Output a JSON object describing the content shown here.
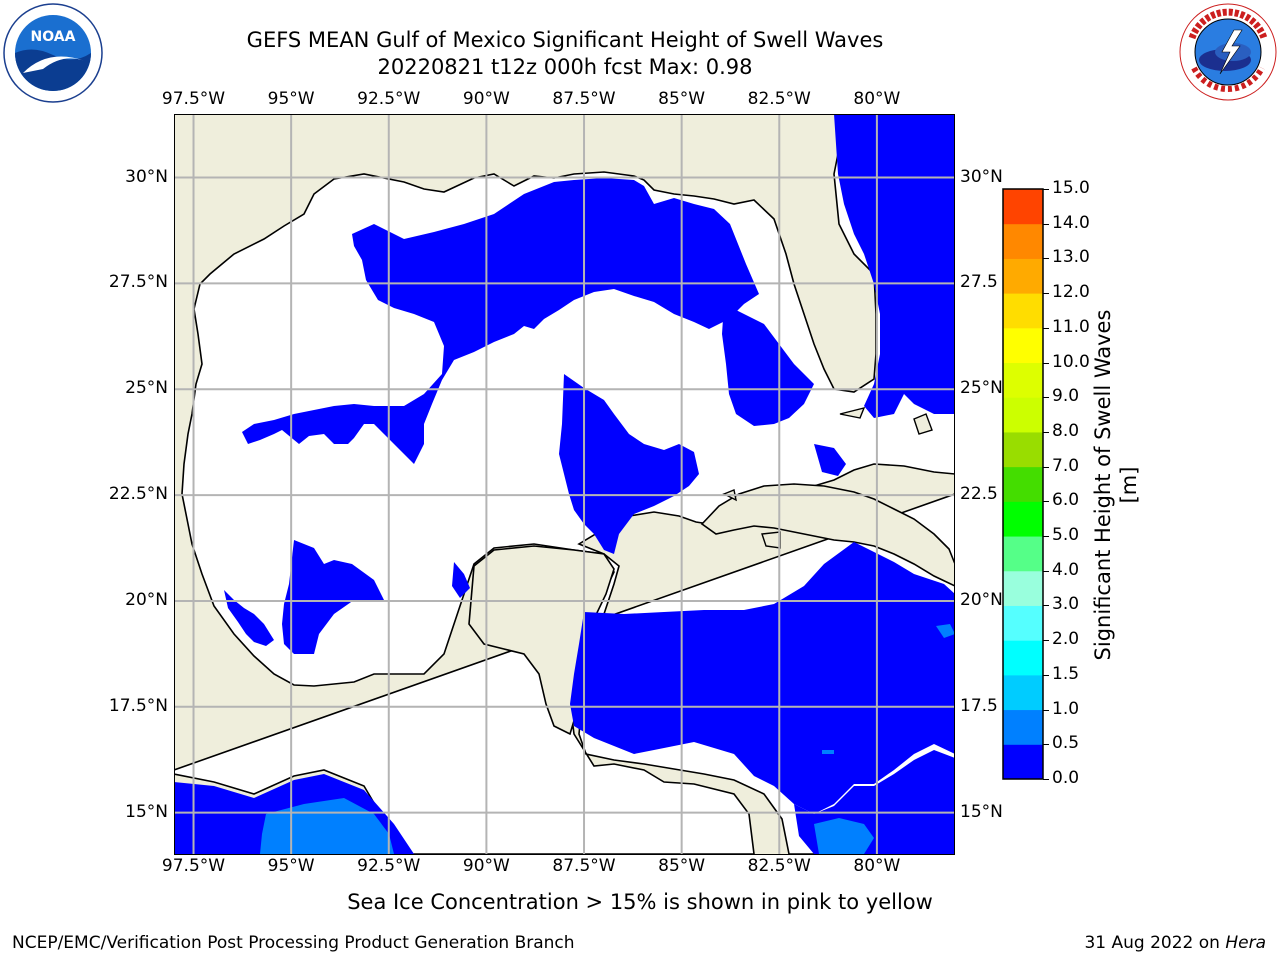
{
  "title": {
    "line1": "GEFS MEAN Gulf of Mexico Significant Height of Swell Waves",
    "line2": "20220821 t12z 000h fcst   Max: 0.98"
  },
  "map": {
    "lon_ticks": [
      "97.5°W",
      "95°W",
      "92.5°W",
      "90°W",
      "87.5°W",
      "85°W",
      "82.5°W",
      "80°W"
    ],
    "lat_ticks_left": [
      "30°N",
      "27.5°N",
      "25°N",
      "22.5°N",
      "20°N",
      "17.5°N",
      "15°N"
    ],
    "lat_ticks_right": [
      "30°N",
      "27.5",
      "25°N",
      "22.5",
      "20°N",
      "17.5",
      "15°N"
    ],
    "lon_range": [
      -98,
      -78
    ],
    "lat_range": [
      14,
      31.5
    ],
    "land_color": "#efeedc",
    "ocean_color": "#ffffff",
    "grid_color": "#b4b4b4"
  },
  "colorbar": {
    "label": "Significant Height of Swell Waves [m]",
    "ticks": [
      "15.0",
      "14.0",
      "13.0",
      "12.0",
      "11.0",
      "10.0",
      "9.0",
      "8.0",
      "7.0",
      "6.0",
      "5.0",
      "4.0",
      "3.0",
      "2.0",
      "1.5",
      "1.0",
      "0.5",
      "0.0"
    ],
    "levels": [
      0,
      0.5,
      1,
      1.5,
      2,
      3,
      4,
      5,
      6,
      7,
      8,
      9,
      10,
      11,
      12,
      13,
      14,
      15
    ],
    "colors": [
      "#0000ff",
      "#0080ff",
      "#00ccff",
      "#00ffff",
      "#55ffff",
      "#99ffdd",
      "#55ff88",
      "#00ff00",
      "#44dd00",
      "#99dd00",
      "#ccff00",
      "#ddff00",
      "#ffff00",
      "#ffdd00",
      "#ffaa00",
      "#ff8800",
      "#ff4400",
      "#ff0000"
    ]
  },
  "footer": {
    "note": "Sea Ice Concentration > 15% is shown in pink to yellow",
    "credit_left": "NCEP/EMC/Verification Post Processing Product Generation Branch",
    "credit_date": "31 Aug 2022 on ",
    "credit_host": "Hera"
  },
  "logos": {
    "noaa_text": "NOAA",
    "noaa_ring_text": "NATIONAL OCEANIC AND ATMOSPHERIC ADMINISTRATION · U.S. DEPARTMENT OF COMMERCE",
    "nws_ring_text": "NATIONAL WEATHER SERVICE"
  }
}
